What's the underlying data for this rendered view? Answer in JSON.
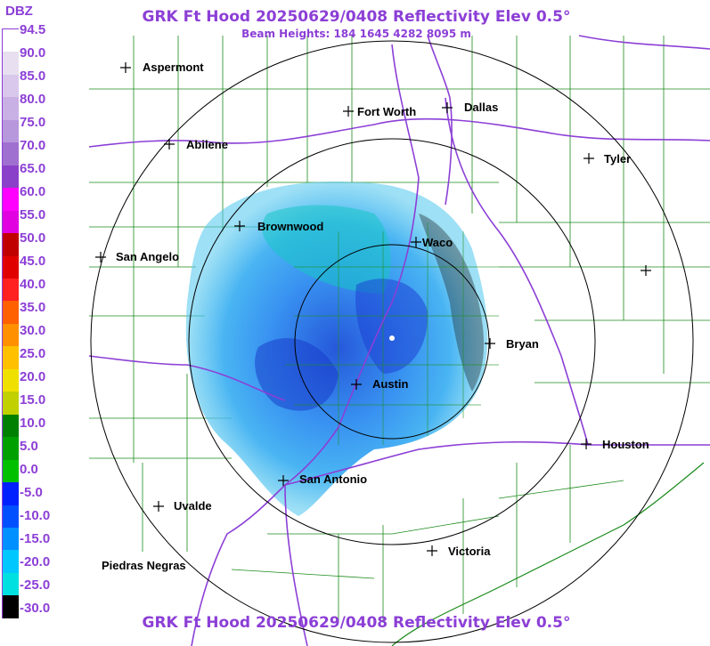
{
  "title": "GRK Ft Hood 20250629/0408 Reflectivity Elev 0.5°",
  "subtitle": "Beam Heights: 184 1645 4282 8095 m",
  "footer_title": "GRK Ft Hood 20250629/0408 Reflectivity Elev 0.5°",
  "legend": {
    "unit": "DBZ",
    "levels": [
      "94.5",
      "90.0",
      "85.0",
      "80.0",
      "75.0",
      "70.0",
      "65.0",
      "60.0",
      "55.0",
      "50.0",
      "45.0",
      "40.0",
      "35.0",
      "30.0",
      "25.0",
      "20.0",
      "15.0",
      "10.0",
      "5.0",
      "0.0",
      "-5.0",
      "-10.0",
      "-15.0",
      "-20.0",
      "-25.0",
      "-30.0"
    ],
    "colors": [
      "#ffffff",
      "#e8e0f0",
      "#d9c8ec",
      "#c9b0e4",
      "#b898dc",
      "#a070d0",
      "#8a40c8",
      "#ff00ff",
      "#e000e0",
      "#c00000",
      "#e00000",
      "#ff2020",
      "#ff6000",
      "#ff9000",
      "#ffc000",
      "#f0e000",
      "#c0d000",
      "#008000",
      "#00a000",
      "#00c000",
      "#0020ff",
      "#0050ff",
      "#0090ff",
      "#00c8ff",
      "#00e0e0",
      "#000000"
    ]
  },
  "cities": [
    {
      "name": "Aspermont"
    },
    {
      "name": "Fort Worth"
    },
    {
      "name": "Dallas"
    },
    {
      "name": "Abilene"
    },
    {
      "name": "Tyler"
    },
    {
      "name": "Brownwood"
    },
    {
      "name": "Waco"
    },
    {
      "name": "San Angelo"
    },
    {
      "name": "Bryan"
    },
    {
      "name": "Austin"
    },
    {
      "name": "Houston"
    },
    {
      "name": "San Antonio"
    },
    {
      "name": "Uvalde"
    },
    {
      "name": "Victoria"
    },
    {
      "name": "Piedras Negras"
    }
  ]
}
